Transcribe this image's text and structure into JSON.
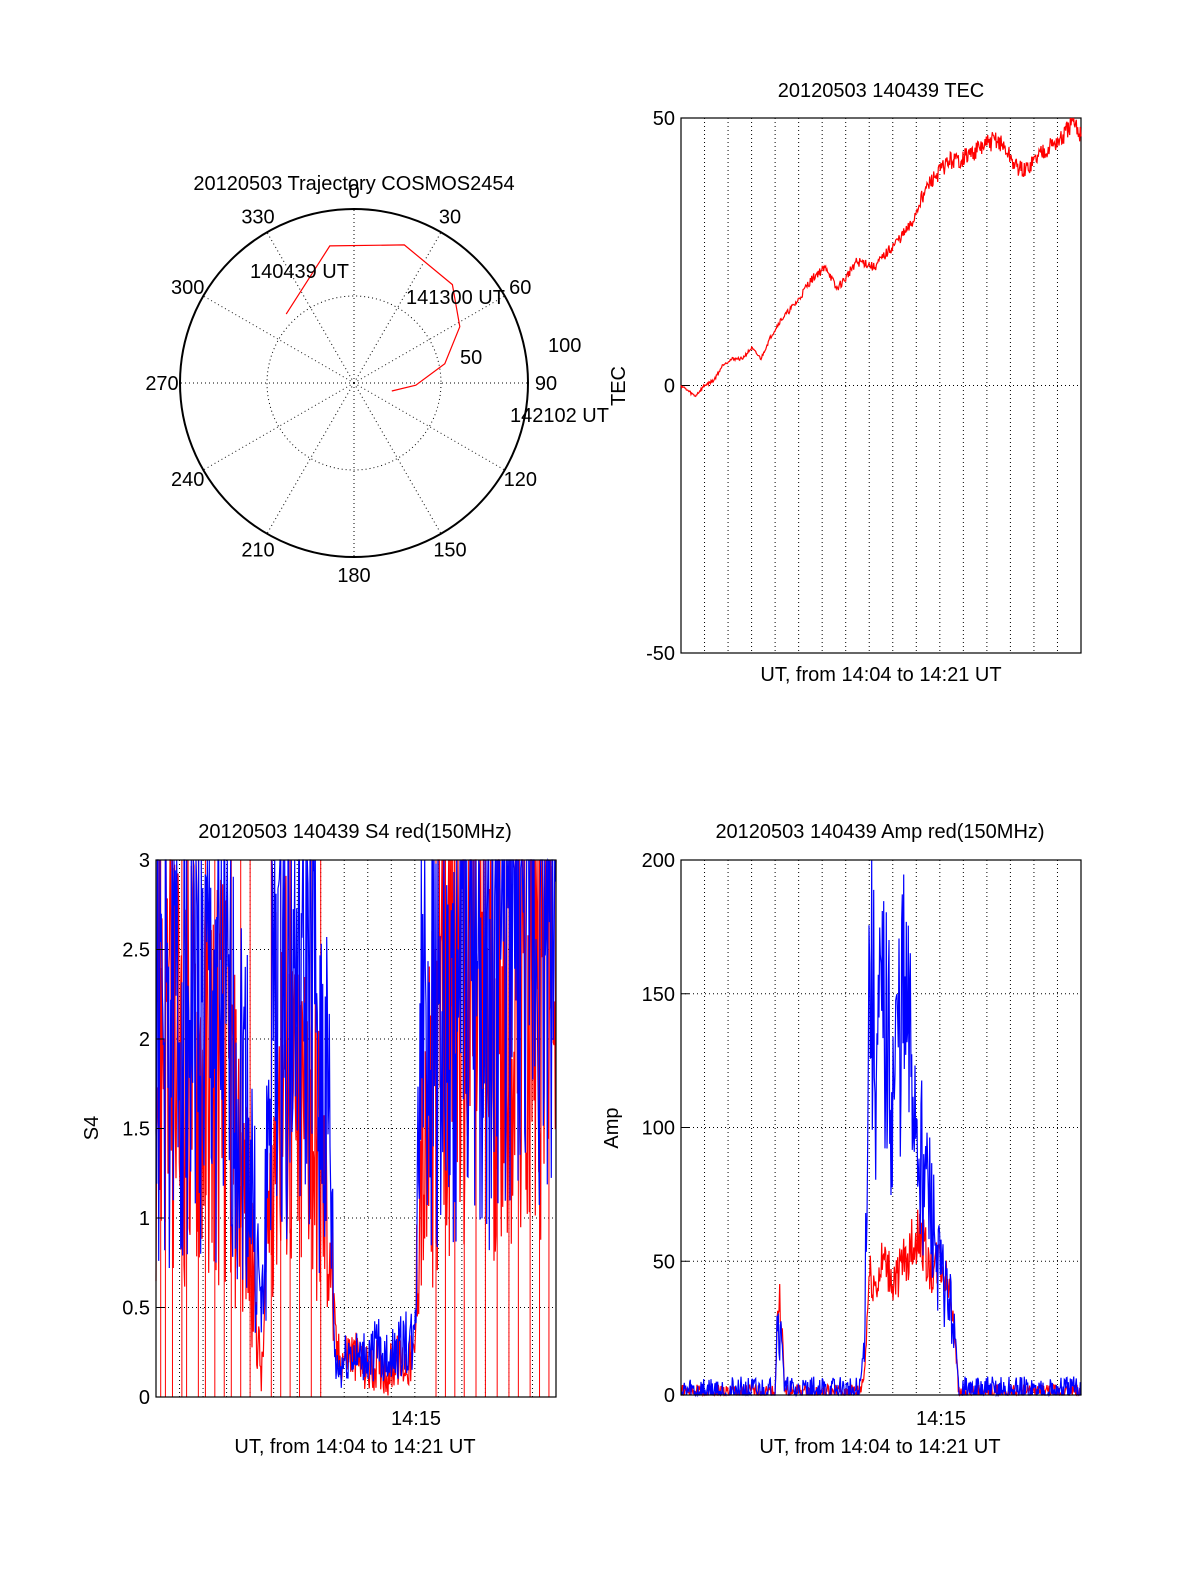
{
  "colors": {
    "red": "#ff0000",
    "blue": "#0000ff",
    "axis": "#000000"
  },
  "chart_data": [
    {
      "type": "polar",
      "title": "20120503 Trajectory COSMOS2454",
      "azimuth_labels": [
        "0",
        "30",
        "60",
        "90",
        "120",
        "150",
        "180",
        "210",
        "240",
        "270",
        "300",
        "330"
      ],
      "elevation_rings": [
        0,
        50
      ],
      "elevation_ring_labels": [
        "50",
        "100"
      ],
      "trajectory": [
        {
          "az": 315.5,
          "el": 40
        },
        {
          "az": 350,
          "el": 18
        },
        {
          "az": 20,
          "el": 14
        },
        {
          "az": 45,
          "el": 18
        },
        {
          "az": 62,
          "el": 28
        },
        {
          "az": 78,
          "el": 42
        },
        {
          "az": 92,
          "el": 58
        },
        {
          "az": 102,
          "el": 70
        }
      ],
      "annotations": [
        "140439 UT",
        "141300 UT",
        "142102 UT"
      ]
    },
    {
      "type": "line",
      "title": "20120503 140439 TEC",
      "xlabel": "UT, from 14:04 to 14:21 UT",
      "ylabel": "TEC",
      "ylim": [
        -50,
        50
      ],
      "yticks": [
        "50",
        "0",
        "-50"
      ],
      "grid": true,
      "series": [
        {
          "color": "red",
          "x": [
            0,
            0.3,
            0.6,
            1.0,
            1.4,
            1.8,
            2.2,
            2.6,
            3.0,
            3.4,
            3.8,
            4.2,
            4.6,
            5.0,
            5.4,
            5.8,
            6.2,
            6.6,
            7.0,
            7.4,
            7.8,
            8.2,
            8.6,
            9.0,
            9.4,
            9.8,
            10.2,
            10.6,
            11.0,
            11.4,
            11.8,
            12.2,
            12.6,
            13.0,
            13.4,
            13.8,
            14.2,
            14.6,
            15.0,
            15.4,
            15.8,
            16.2,
            16.6,
            17.0
          ],
          "y": [
            0,
            -1,
            -2,
            0,
            1,
            4,
            5,
            5,
            7,
            5,
            9,
            12,
            14,
            16,
            19,
            21,
            22,
            18,
            20,
            23,
            23,
            22,
            24,
            26,
            28,
            30,
            35,
            38,
            40,
            42,
            42,
            43,
            44,
            45,
            46,
            44,
            41,
            40,
            42,
            44,
            45,
            46,
            49,
            47
          ]
        }
      ]
    },
    {
      "type": "line",
      "title": "20120503 140439 S4 red(150MHz)",
      "xlabel": "UT, from 14:04 to 14:21 UT",
      "ylabel": "S4",
      "ylim": [
        0,
        3
      ],
      "yticks": [
        "3",
        "2.5",
        "2",
        "1.5",
        "1",
        "0.5",
        "0"
      ],
      "xticks": [
        "14:15"
      ],
      "grid": true,
      "series": [
        {
          "color": "red",
          "x": [
            0,
            0.5,
            1,
            1.5,
            2,
            2.5,
            3,
            3.5,
            3.9,
            4.2,
            4.5,
            5,
            5.5,
            6,
            6.5,
            7,
            7.4,
            7.6,
            7.8,
            8.2,
            8.6,
            9,
            9.4,
            9.8,
            10.2,
            10.6,
            11,
            11.2,
            11.5,
            11.8,
            12.2,
            12.6,
            13,
            13.5,
            14,
            14.5,
            15,
            15.5,
            16,
            16.5,
            17
          ],
          "y": [
            1.9,
            2.2,
            1.7,
            2.0,
            1.8,
            1.9,
            1.8,
            1.3,
            1.0,
            0.5,
            0.1,
            1.6,
            1.9,
            1.4,
            1.8,
            1.2,
            0.9,
            0.3,
            0.2,
            0.25,
            0.2,
            0.15,
            0.2,
            0.15,
            0.2,
            0.18,
            0.22,
            1.3,
            1.2,
            1.9,
            2.1,
            2.3,
            2.2,
            2.4,
            2.1,
            2.3,
            2.5,
            2.2,
            2.4,
            2.6,
            2.3
          ]
        },
        {
          "color": "blue",
          "x": [
            0,
            0.5,
            1,
            1.5,
            2,
            2.5,
            3,
            3.5,
            3.9,
            4.2,
            4.5,
            5,
            5.5,
            6,
            6.5,
            7,
            7.4,
            7.6,
            7.8,
            8.2,
            8.6,
            9,
            9.4,
            9.8,
            10.2,
            10.6,
            11,
            11.2,
            11.5,
            11.8,
            12.2,
            12.6,
            13,
            13.5,
            14,
            14.5,
            15,
            15.5,
            16,
            16.5,
            17
          ],
          "y": [
            2.1,
            2.0,
            2.2,
            2.3,
            2.0,
            2.2,
            1.9,
            1.8,
            1.6,
            0.9,
            0.4,
            2.3,
            2.5,
            2.2,
            2.4,
            1.9,
            1.4,
            0.2,
            0.15,
            0.25,
            0.2,
            0.22,
            0.28,
            0.2,
            0.25,
            0.3,
            0.28,
            2.2,
            2.6,
            2.4,
            1.9,
            1.7,
            2.5,
            2.7,
            2.3,
            2.6,
            2.8,
            2.5,
            2.7,
            2.6,
            2.8
          ]
        }
      ]
    },
    {
      "type": "line",
      "title": "20120503 140439 Amp red(150MHz)",
      "xlabel": "UT, from 14:04 to 14:21 UT",
      "ylabel": "Amp",
      "ylim": [
        0,
        200
      ],
      "yticks": [
        "200",
        "150",
        "100",
        "50",
        "0"
      ],
      "xticks": [
        "14:15"
      ],
      "grid": true,
      "series": [
        {
          "color": "red",
          "x": [
            0,
            4.0,
            4.1,
            4.2,
            4.3,
            4.4,
            7.6,
            7.8,
            8.0,
            8.3,
            8.6,
            9.0,
            9.4,
            9.8,
            10.2,
            10.6,
            11.0,
            11.4,
            11.6,
            11.8,
            17
          ],
          "y": [
            1,
            1,
            30,
            35,
            25,
            1,
            1,
            8,
            45,
            40,
            50,
            42,
            48,
            55,
            60,
            45,
            50,
            40,
            30,
            1,
            1
          ]
        },
        {
          "color": "blue",
          "x": [
            0,
            4.0,
            4.1,
            4.2,
            4.3,
            4.4,
            7.6,
            7.8,
            8.0,
            8.3,
            8.6,
            9.0,
            9.4,
            9.8,
            10.2,
            10.6,
            11.0,
            11.4,
            11.6,
            11.8,
            17
          ],
          "y": [
            1,
            1,
            33,
            20,
            25,
            1,
            1,
            20,
            160,
            120,
            140,
            110,
            145,
            120,
            90,
            70,
            45,
            35,
            25,
            1,
            1
          ]
        }
      ]
    }
  ]
}
